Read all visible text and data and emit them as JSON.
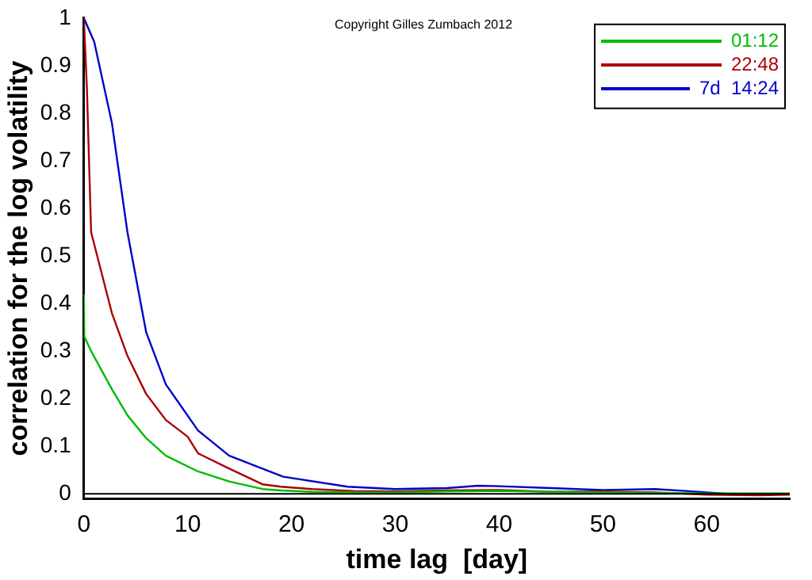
{
  "chart_data": {
    "type": "line",
    "xlabel": "time lag  [day]",
    "ylabel": "correlation for the log volatility",
    "annotations": [
      "Copyright Gilles Zumbach 2012"
    ],
    "xlim": [
      0,
      68
    ],
    "xticks": [
      0,
      10,
      20,
      30,
      40,
      50,
      60
    ],
    "ylim": [
      -0.01,
      1
    ],
    "yticks": [
      0,
      0.1,
      0.2,
      0.3,
      0.4,
      0.5,
      0.6,
      0.7,
      0.8,
      0.9,
      1
    ],
    "legend": "top right",
    "grid": false,
    "marker": "none",
    "line_style": "solid",
    "ref_lines": [
      {
        "axis": "y",
        "value": 0,
        "color": "#000000"
      }
    ],
    "series": [
      {
        "name": "01:12",
        "color": "#00bb00",
        "x": [
          0,
          0.05,
          0.7,
          2.7,
          4.2,
          6,
          7.9,
          11,
          14,
          17.2,
          19,
          22,
          26,
          30,
          35,
          40,
          45,
          50,
          55,
          60,
          65,
          68
        ],
        "values": [
          0.42,
          0.33,
          0.3,
          0.22,
          0.165,
          0.117,
          0.08,
          0.047,
          0.026,
          0.01,
          0.007,
          0.004,
          0.003,
          0.003,
          0.005,
          0.006,
          0.004,
          0.003,
          0.002,
          0.001,
          0.001,
          0.001
        ]
      },
      {
        "name": "22:48",
        "color": "#aa0000",
        "x": [
          0,
          0.3,
          0.7,
          2.7,
          4.2,
          6,
          7.9,
          10,
          11,
          14,
          17.2,
          19,
          22,
          26,
          30,
          35,
          40,
          45,
          50,
          55,
          60,
          65,
          68
        ],
        "values": [
          1,
          0.85,
          0.55,
          0.38,
          0.29,
          0.21,
          0.155,
          0.12,
          0.085,
          0.053,
          0.02,
          0.015,
          0.01,
          0.006,
          0.005,
          0.007,
          0.008,
          0.004,
          0.005,
          0.003,
          -0.002,
          -0.003,
          -0.002
        ]
      },
      {
        "name": "7d  14:24",
        "color": "#0000cc",
        "x": [
          0,
          1,
          2.7,
          4.2,
          6,
          7.9,
          11,
          14,
          19.2,
          25.4,
          30,
          35,
          38,
          40,
          45,
          50,
          55,
          58,
          62
        ],
        "values": [
          1,
          0.95,
          0.78,
          0.55,
          0.34,
          0.23,
          0.133,
          0.08,
          0.036,
          0.015,
          0.01,
          0.012,
          0.017,
          0.016,
          0.012,
          0.008,
          0.01,
          0.006,
          0
        ]
      }
    ]
  }
}
